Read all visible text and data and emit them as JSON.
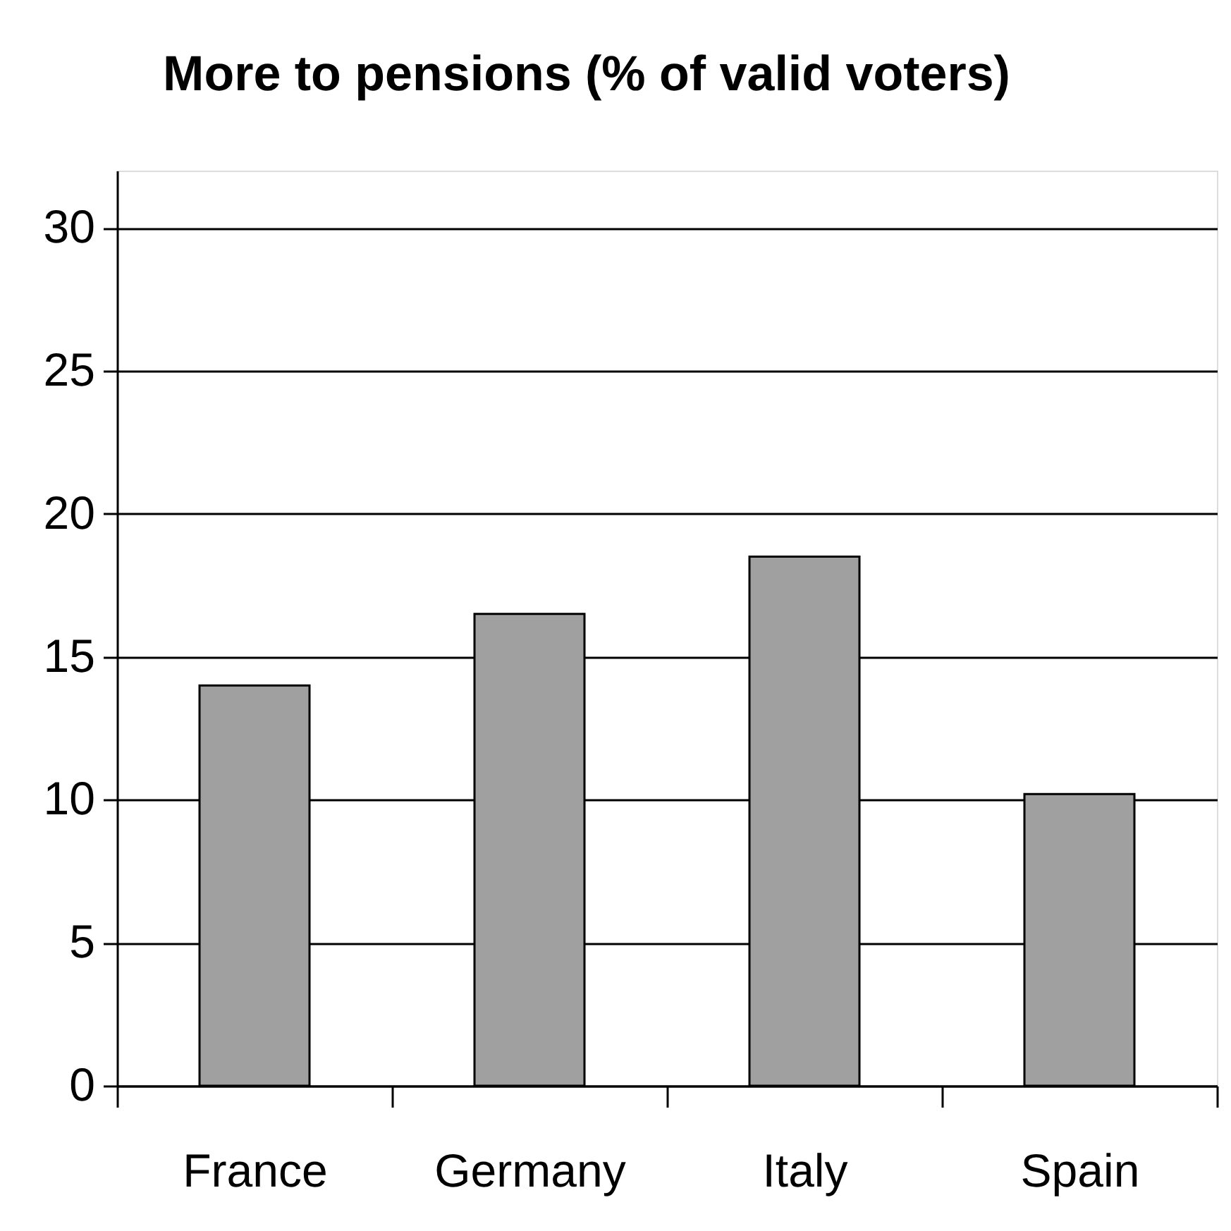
{
  "chart_data": {
    "type": "bar",
    "title": "More to pensions (% of valid voters)",
    "categories": [
      "France",
      "Germany",
      "Italy",
      "Spain"
    ],
    "values": [
      14,
      16.5,
      18.5,
      10.2
    ],
    "color": "#a0a0a0",
    "ylim": [
      0,
      32
    ],
    "yticks": [
      0,
      5,
      10,
      15,
      20,
      25,
      30
    ],
    "grid": "y"
  }
}
